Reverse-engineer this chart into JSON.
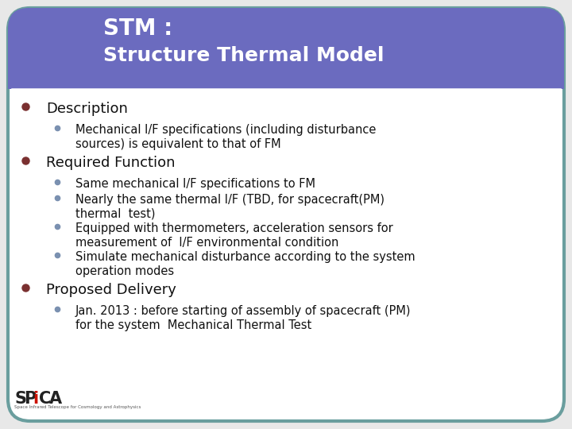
{
  "title_line1": "STM :",
  "title_line2": "Structure Thermal Model",
  "header_bg_color": "#6B6BBF",
  "header_text_color": "#ffffff",
  "body_bg_color": "#ffffff",
  "border_color": "#6a9e9e",
  "bullet_color_main": "#7a3030",
  "bullet_color_sub": "#7a90b0",
  "main_items": [
    {
      "text": "Description",
      "sub_items": [
        "Mechanical I/F specifications (including disturbance\nsources) is equivalent to that of FM"
      ]
    },
    {
      "text": "Required Function",
      "sub_items": [
        "Same mechanical I/F specifications to FM",
        "Nearly the same thermal I/F (TBD, for spacecraft(PM)\nthermal  test)",
        "Equipped with thermometers, acceleration sensors for\nmeasurement of  I/F environmental condition",
        "Simulate mechanical disturbance according to the system\noperation modes"
      ]
    },
    {
      "text": "Proposed Delivery",
      "sub_items": [
        "Jan. 2013 : before starting of assembly of spacecraft (PM)\nfor the system  Mechanical Thermal Test"
      ]
    }
  ],
  "main_fontsize": 13,
  "sub_fontsize": 10.5,
  "title_fontsize1": 20,
  "title_fontsize2": 18,
  "fig_width": 7.2,
  "fig_height": 5.4,
  "dpi": 100
}
